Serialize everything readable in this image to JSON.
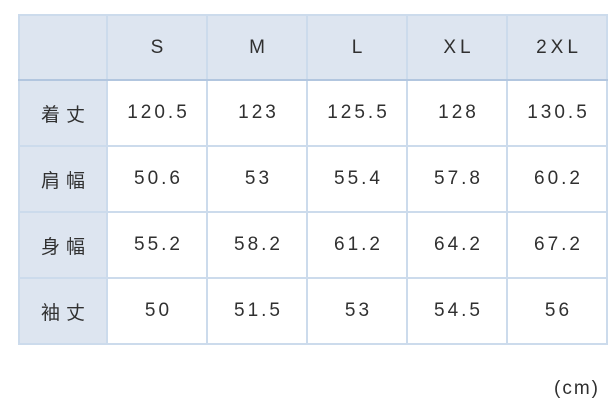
{
  "chart_data": {
    "type": "table",
    "title": "",
    "columns": [
      "",
      "S",
      "M",
      "L",
      "XL",
      "2XL"
    ],
    "row_labels": [
      "着丈",
      "肩幅",
      "身幅",
      "袖丈"
    ],
    "rows": [
      [
        "120.5",
        "123",
        "125.5",
        "128",
        "130.5"
      ],
      [
        "50.6",
        "53",
        "55.4",
        "57.8",
        "60.2"
      ],
      [
        "55.2",
        "58.2",
        "61.2",
        "64.2",
        "67.2"
      ],
      [
        "50",
        "51.5",
        "53",
        "54.5",
        "56"
      ]
    ],
    "unit": "(cm)",
    "layout": {
      "header_fill": "#dde5f0",
      "label_fill": "#dde5f0",
      "cell_fill": "#ffffff",
      "border_color": "#ccdbec",
      "outer_border_color": "#b9cce3",
      "text_color": "#303030"
    }
  }
}
